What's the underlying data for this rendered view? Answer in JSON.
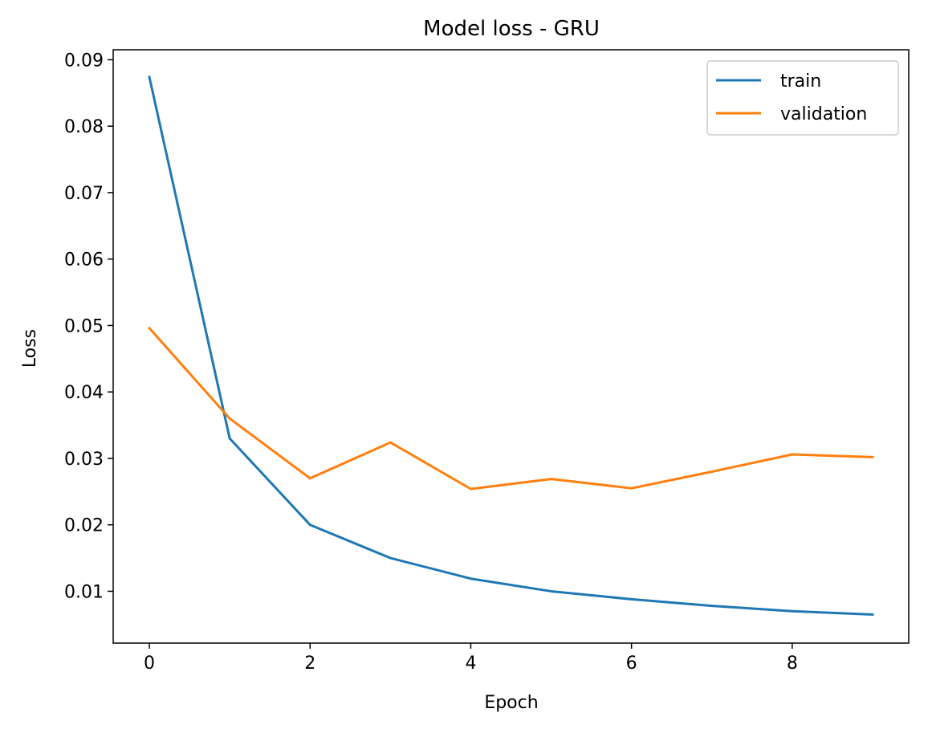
{
  "chart_data": {
    "type": "line",
    "title": "Model loss - GRU",
    "xlabel": "Epoch",
    "ylabel": "Loss",
    "xlim": [
      -0.45,
      9.45
    ],
    "ylim": [
      0.0022,
      0.0915
    ],
    "xticks": [
      0,
      2,
      4,
      6,
      8
    ],
    "yticks": [
      0.01,
      0.02,
      0.03,
      0.04,
      0.05,
      0.06,
      0.07,
      0.08,
      0.09
    ],
    "x": [
      0,
      1,
      2,
      3,
      4,
      5,
      6,
      7,
      8,
      9
    ],
    "series": [
      {
        "name": "train",
        "color": "#1f77b4",
        "values": [
          0.0874,
          0.033,
          0.02,
          0.015,
          0.0119,
          0.01,
          0.0088,
          0.0078,
          0.007,
          0.0065
        ]
      },
      {
        "name": "validation",
        "color": "#ff7f0e",
        "values": [
          0.0496,
          0.036,
          0.027,
          0.0324,
          0.0254,
          0.0269,
          0.0255,
          0.028,
          0.0306,
          0.0302
        ]
      }
    ],
    "grid": false,
    "legend_position": "top-right"
  }
}
